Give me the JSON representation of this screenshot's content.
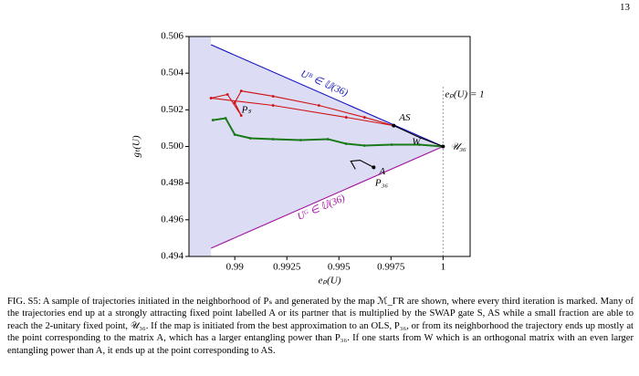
{
  "page_number": "13",
  "chart_data": {
    "type": "line",
    "xlabel": "eₚ(U)",
    "ylabel": "gₜ(U)",
    "xlim": [
      0.9878,
      1.0013
    ],
    "ylim": [
      0.494,
      0.506
    ],
    "xticks": [
      0.99,
      0.9925,
      0.995,
      0.9975,
      1
    ],
    "yticks": [
      0.494,
      0.496,
      0.498,
      {
        "value": 0.5,
        "label": "0.500"
      },
      0.502,
      0.504,
      0.506
    ],
    "series": [
      {
        "color": "#1010c0",
        "x": [
          0.98886,
          1.0
        ],
        "y": [
          0.50555,
          0.5
        ]
      },
      {
        "color": "#a010a0",
        "x": [
          0.98886,
          1.0
        ],
        "y": [
          0.49445,
          0.5
        ]
      },
      {
        "color": "#1a7a1a",
        "x": [
          0.98895,
          0.98956,
          0.99,
          0.99075,
          0.99184,
          0.99316,
          0.99447,
          0.99535,
          0.99623,
          0.99754,
          0.99886,
          1.0
        ],
        "y": [
          0.50144,
          0.50154,
          0.50065,
          0.50045,
          0.5004,
          0.50035,
          0.5004,
          0.50015,
          0.50005,
          0.5001,
          0.5001,
          0.5
        ]
      },
      {
        "color": "#d01010",
        "x": [
          0.98886,
          0.98965,
          0.99031,
          0.99,
          0.99031,
          0.99184,
          0.99404,
          0.99623,
          0.99763
        ],
        "y": [
          0.50264,
          0.50284,
          0.50169,
          0.50239,
          0.50303,
          0.50274,
          0.50224,
          0.50159,
          0.50114
        ]
      },
      {
        "color": "#d01010",
        "x": [
          0.98886,
          0.99184,
          0.99535,
          0.99763
        ],
        "y": [
          0.50264,
          0.50224,
          0.50159,
          0.50114
        ]
      },
      {
        "color": "#000000",
        "x": [
          0.99763,
          0.99886,
          1.0
        ],
        "y": [
          0.50114,
          0.5005,
          0.5
        ]
      },
      {
        "color": "#000000",
        "x": [
          0.99579,
          0.99557,
          0.99601,
          0.99667
        ],
        "y": [
          0.49876,
          0.4992,
          0.49925,
          0.49886
        ]
      }
    ],
    "points": [
      {
        "label": "AS",
        "x": 0.99763,
        "y": 0.50114
      },
      {
        "label": "A",
        "x": 0.99667,
        "y": 0.49886
      },
      {
        "label": "𝒰₃₆",
        "x": 1.0,
        "y": 0.5
      }
    ],
    "annotations": [
      "Uᴮ ∈ 𝕌(36)",
      "Uᴳ ∈ 𝕌(36)",
      "eₚ(U) = 1",
      "P₃₆",
      "Pₛ",
      "W"
    ]
  },
  "caption": "FIG. S5: A sample of trajectories initiated in the neighborhood of Pₛ and generated by the map ℳ_ΓR are shown, where every third iteration is marked. Many of the trajectories end up at a strongly attracting fixed point labelled A or its partner that is multiplied by the SWAP gate S, AS while a small fraction are able to reach the 2-unitary fixed point, 𝒰₃₆. If the map is initiated from the best approximation to an OLS, P₃₆, or from its neighborhood the trajectory ends up mostly at the point corresponding to the matrix A, which has a larger entangling power than P₃₆. If one starts from W which is an orthogonal matrix with an even larger entangling power than A, it ends up at the point corresponding to AS."
}
